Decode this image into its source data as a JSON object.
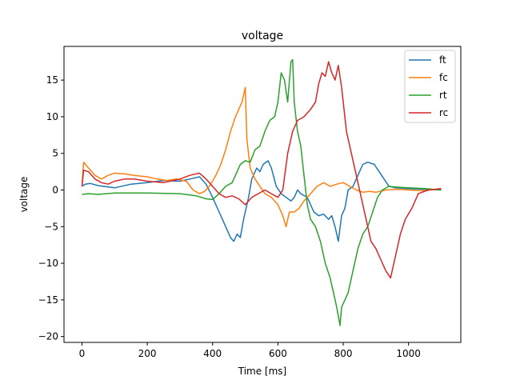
{
  "chart_data": {
    "type": "line",
    "title": "voltage",
    "xlabel": "Time [ms]",
    "ylabel": "voltage",
    "xlim": [
      -55,
      1160
    ],
    "ylim": [
      -20.8,
      19.6
    ],
    "xticks": [
      0,
      200,
      400,
      600,
      800,
      1000
    ],
    "yticks": [
      -20,
      -15,
      -10,
      -5,
      0,
      5,
      10,
      15
    ],
    "grid": false,
    "legend_position": "top-right",
    "series": [
      {
        "name": "ft",
        "color": "#1f77b4",
        "points": [
          [
            0,
            0.5
          ],
          [
            10,
            0.8
          ],
          [
            25,
            0.9
          ],
          [
            50,
            0.6
          ],
          [
            100,
            0.3
          ],
          [
            150,
            0.8
          ],
          [
            200,
            1.0
          ],
          [
            250,
            1.3
          ],
          [
            300,
            1.2
          ],
          [
            330,
            1.5
          ],
          [
            360,
            1.8
          ],
          [
            380,
            0.8
          ],
          [
            400,
            -1.0
          ],
          [
            420,
            -3.0
          ],
          [
            430,
            -4.0
          ],
          [
            445,
            -5.5
          ],
          [
            455,
            -6.5
          ],
          [
            465,
            -7.0
          ],
          [
            475,
            -6.0
          ],
          [
            485,
            -6.5
          ],
          [
            495,
            -4.0
          ],
          [
            510,
            -1.0
          ],
          [
            520,
            1.5
          ],
          [
            535,
            3.0
          ],
          [
            545,
            2.5
          ],
          [
            555,
            3.5
          ],
          [
            570,
            4.0
          ],
          [
            580,
            3.0
          ],
          [
            595,
            0.5
          ],
          [
            610,
            -0.5
          ],
          [
            625,
            -1.0
          ],
          [
            640,
            -1.5
          ],
          [
            650,
            -1.0
          ],
          [
            660,
            0.0
          ],
          [
            670,
            -0.5
          ],
          [
            690,
            -1.0
          ],
          [
            700,
            -2.0
          ],
          [
            710,
            -3.0
          ],
          [
            725,
            -3.5
          ],
          [
            740,
            -3.3
          ],
          [
            755,
            -4.0
          ],
          [
            765,
            -3.5
          ],
          [
            775,
            -5.0
          ],
          [
            785,
            -7.0
          ],
          [
            795,
            -3.5
          ],
          [
            805,
            -2.5
          ],
          [
            815,
            0.0
          ],
          [
            830,
            0.5
          ],
          [
            845,
            2.0
          ],
          [
            860,
            3.5
          ],
          [
            875,
            3.8
          ],
          [
            895,
            3.5
          ],
          [
            910,
            2.5
          ],
          [
            925,
            1.5
          ],
          [
            940,
            0.5
          ],
          [
            960,
            0.3
          ],
          [
            1000,
            0.2
          ],
          [
            1050,
            0.1
          ],
          [
            1100,
            0.0
          ]
        ]
      },
      {
        "name": "fc",
        "color": "#ff7f0e",
        "points": [
          [
            0,
            0.5
          ],
          [
            5,
            3.8
          ],
          [
            20,
            3.0
          ],
          [
            40,
            2.0
          ],
          [
            60,
            1.5
          ],
          [
            80,
            2.0
          ],
          [
            100,
            2.3
          ],
          [
            130,
            2.2
          ],
          [
            160,
            2.0
          ],
          [
            200,
            1.8
          ],
          [
            230,
            1.5
          ],
          [
            260,
            1.3
          ],
          [
            290,
            1.5
          ],
          [
            320,
            1.2
          ],
          [
            340,
            0.0
          ],
          [
            360,
            -0.5
          ],
          [
            375,
            -0.2
          ],
          [
            390,
            0.5
          ],
          [
            410,
            2.0
          ],
          [
            425,
            3.5
          ],
          [
            440,
            5.5
          ],
          [
            455,
            8.0
          ],
          [
            470,
            10.0
          ],
          [
            480,
            11.0
          ],
          [
            490,
            12.0
          ],
          [
            500,
            14.0
          ],
          [
            505,
            7.0
          ],
          [
            515,
            3.0
          ],
          [
            530,
            1.5
          ],
          [
            545,
            0.5
          ],
          [
            560,
            -0.5
          ],
          [
            580,
            -1.0
          ],
          [
            600,
            -2.0
          ],
          [
            615,
            -3.5
          ],
          [
            625,
            -5.0
          ],
          [
            635,
            -3.0
          ],
          [
            650,
            -3.0
          ],
          [
            665,
            -2.5
          ],
          [
            680,
            -1.5
          ],
          [
            700,
            -0.5
          ],
          [
            720,
            0.5
          ],
          [
            740,
            1.0
          ],
          [
            760,
            0.5
          ],
          [
            780,
            0.8
          ],
          [
            800,
            1.0
          ],
          [
            820,
            0.5
          ],
          [
            840,
            0.0
          ],
          [
            860,
            -0.3
          ],
          [
            880,
            -0.2
          ],
          [
            900,
            -0.3
          ],
          [
            930,
            0.0
          ],
          [
            960,
            0.1
          ],
          [
            1000,
            0.0
          ],
          [
            1050,
            -0.1
          ],
          [
            1100,
            0.2
          ]
        ]
      },
      {
        "name": "rt",
        "color": "#2ca02c",
        "points": [
          [
            0,
            -0.6
          ],
          [
            20,
            -0.5
          ],
          [
            50,
            -0.6
          ],
          [
            100,
            -0.4
          ],
          [
            200,
            -0.4
          ],
          [
            300,
            -0.5
          ],
          [
            350,
            -0.8
          ],
          [
            380,
            -1.2
          ],
          [
            400,
            -1.3
          ],
          [
            420,
            -0.5
          ],
          [
            440,
            0.5
          ],
          [
            460,
            1.0
          ],
          [
            475,
            2.5
          ],
          [
            485,
            3.5
          ],
          [
            500,
            4.0
          ],
          [
            515,
            3.8
          ],
          [
            530,
            5.5
          ],
          [
            545,
            6.0
          ],
          [
            560,
            8.0
          ],
          [
            575,
            9.5
          ],
          [
            590,
            10.0
          ],
          [
            600,
            12.0
          ],
          [
            610,
            16.0
          ],
          [
            620,
            15.0
          ],
          [
            630,
            12.0
          ],
          [
            640,
            17.5
          ],
          [
            645,
            17.8
          ],
          [
            650,
            12.0
          ],
          [
            660,
            8.0
          ],
          [
            670,
            6.0
          ],
          [
            680,
            2.0
          ],
          [
            690,
            -2.0
          ],
          [
            700,
            -4.0
          ],
          [
            715,
            -5.0
          ],
          [
            730,
            -7.0
          ],
          [
            745,
            -10.0
          ],
          [
            760,
            -12.0
          ],
          [
            770,
            -14.0
          ],
          [
            780,
            -16.0
          ],
          [
            790,
            -18.5
          ],
          [
            795,
            -16.0
          ],
          [
            805,
            -15.0
          ],
          [
            815,
            -14.0
          ],
          [
            830,
            -11.0
          ],
          [
            845,
            -8.0
          ],
          [
            860,
            -6.0
          ],
          [
            875,
            -5.0
          ],
          [
            890,
            -3.0
          ],
          [
            905,
            -1.0
          ],
          [
            920,
            0.0
          ],
          [
            940,
            0.5
          ],
          [
            960,
            0.4
          ],
          [
            1000,
            0.3
          ],
          [
            1050,
            0.2
          ],
          [
            1100,
            0.0
          ]
        ]
      },
      {
        "name": "rc",
        "color": "#d62728",
        "points": [
          [
            0,
            0.5
          ],
          [
            5,
            2.7
          ],
          [
            20,
            2.5
          ],
          [
            40,
            1.5
          ],
          [
            60,
            1.0
          ],
          [
            80,
            0.8
          ],
          [
            100,
            1.2
          ],
          [
            130,
            1.5
          ],
          [
            160,
            1.5
          ],
          [
            200,
            1.2
          ],
          [
            250,
            1.0
          ],
          [
            300,
            1.5
          ],
          [
            330,
            2.0
          ],
          [
            360,
            2.3
          ],
          [
            380,
            1.5
          ],
          [
            400,
            0.5
          ],
          [
            420,
            -0.5
          ],
          [
            440,
            -1.0
          ],
          [
            460,
            -0.8
          ],
          [
            480,
            -1.2
          ],
          [
            500,
            -2.0
          ],
          [
            510,
            -1.5
          ],
          [
            520,
            -1.0
          ],
          [
            540,
            -0.5
          ],
          [
            560,
            0.0
          ],
          [
            580,
            -0.5
          ],
          [
            600,
            -1.0
          ],
          [
            615,
            0.0
          ],
          [
            630,
            5.0
          ],
          [
            645,
            8.0
          ],
          [
            660,
            9.5
          ],
          [
            680,
            10.0
          ],
          [
            700,
            11.0
          ],
          [
            715,
            12.0
          ],
          [
            725,
            14.5
          ],
          [
            735,
            16.0
          ],
          [
            745,
            15.5
          ],
          [
            755,
            17.5
          ],
          [
            765,
            16.0
          ],
          [
            775,
            15.0
          ],
          [
            785,
            17.0
          ],
          [
            795,
            14.0
          ],
          [
            810,
            8.0
          ],
          [
            825,
            5.0
          ],
          [
            840,
            2.0
          ],
          [
            855,
            -1.0
          ],
          [
            870,
            -4.0
          ],
          [
            885,
            -7.0
          ],
          [
            900,
            -8.0
          ],
          [
            915,
            -9.5
          ],
          [
            930,
            -11.0
          ],
          [
            945,
            -12.0
          ],
          [
            960,
            -9.0
          ],
          [
            975,
            -6.0
          ],
          [
            990,
            -4.0
          ],
          [
            1010,
            -2.5
          ],
          [
            1030,
            -0.5
          ],
          [
            1060,
            0.0
          ],
          [
            1100,
            0.2
          ]
        ]
      }
    ]
  }
}
